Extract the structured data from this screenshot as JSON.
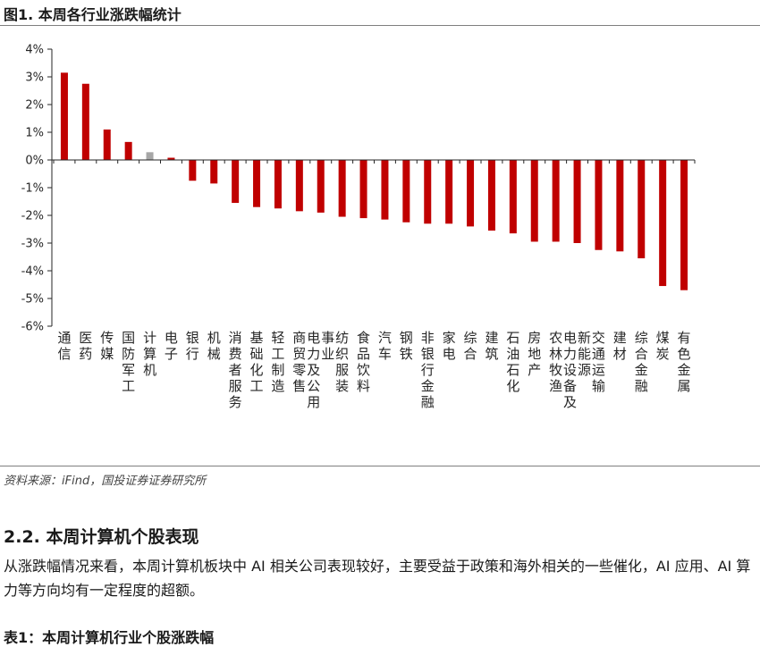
{
  "figure_title": "图1. 本周各行业涨跌幅统计",
  "source": "资料来源：iFind，国投证券证券研究所",
  "section_heading": "2.2. 本周计算机个股表现",
  "paragraph": "从涨跌幅情况来看，本周计算机板块中 AI 相关公司表现较好，主要受益于政策和海外相关的一些催化，AI 应用、AI 算力等方向均有一定程度的超额。",
  "next_caption_partial": "表1：本周计算机行业个股涨跌幅",
  "colors": {
    "bar": "#c00000",
    "highlight": "#a6a6a6",
    "axis": "#262626",
    "text": "#262626"
  },
  "chart_data": {
    "type": "bar",
    "title": "",
    "xlabel": "",
    "ylabel": "",
    "ylim": [
      -6,
      4
    ],
    "yticks": [
      "4%",
      "3%",
      "2%",
      "1%",
      "0%",
      "-1%",
      "-2%",
      "-3%",
      "-4%",
      "-5%",
      "-6%"
    ],
    "ytick_values": [
      4,
      3,
      2,
      1,
      0,
      -1,
      -2,
      -3,
      -4,
      -5,
      -6
    ],
    "grid": false,
    "legend": "none",
    "highlight_category": "计算机",
    "categories": [
      "通信",
      "医药",
      "传媒",
      "国防军工",
      "计算机",
      "电子",
      "银行",
      "机械",
      "消费者服务",
      "基础化工",
      "轻工制造",
      "商贸零售",
      "电力及公用事业",
      "纺织服装",
      "食品饮料",
      "汽车",
      "钢铁",
      "非银行金融",
      "家电",
      "综合",
      "建筑",
      "石油石化",
      "房地产",
      "农林牧渔",
      "电力设备及新能源",
      "交通运输",
      "建材",
      "综合金融",
      "煤炭",
      "有色金属"
    ],
    "values": [
      3.15,
      2.75,
      1.1,
      0.65,
      0.28,
      0.08,
      -0.75,
      -0.85,
      -1.55,
      -1.7,
      -1.75,
      -1.85,
      -1.9,
      -2.05,
      -2.1,
      -2.15,
      -2.25,
      -2.3,
      -2.3,
      -2.4,
      -2.55,
      -2.65,
      -2.95,
      -2.95,
      -3.0,
      -3.25,
      -3.3,
      -3.55,
      -4.55,
      -4.7
    ]
  }
}
